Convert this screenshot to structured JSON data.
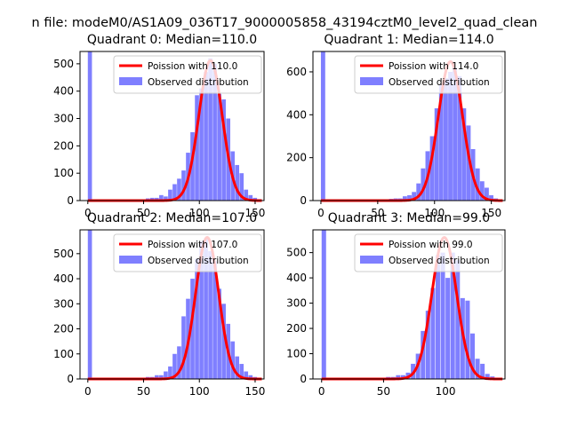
{
  "figure": {
    "suptitle": "n file: modeM0/AS1A09_036T17_9000005858_43194cztM0_level2_quad_clean"
  },
  "chart_data": [
    {
      "type": "bar",
      "title": "Quadrant 0: Median=110.0",
      "xlim": [
        -7,
        158
      ],
      "ylim": [
        0,
        545
      ],
      "xticks": [
        0,
        50,
        100,
        150
      ],
      "yticks": [
        0,
        100,
        200,
        300,
        400,
        500
      ],
      "poisson_mean": 110.0,
      "poisson_peak": 512,
      "legend": [
        "Poission with 110.0",
        "Observed distribution"
      ],
      "legend_position": "upper right",
      "bin_width": 3.7,
      "bins": [
        [
          0,
          545
        ],
        [
          52,
          8
        ],
        [
          56,
          10
        ],
        [
          60,
          10
        ],
        [
          64,
          20
        ],
        [
          68,
          15
        ],
        [
          72,
          40
        ],
        [
          76,
          60
        ],
        [
          80,
          80
        ],
        [
          84,
          110
        ],
        [
          88,
          175
        ],
        [
          92,
          250
        ],
        [
          96,
          385
        ],
        [
          100,
          410
        ],
        [
          104,
          470
        ],
        [
          108,
          520
        ],
        [
          112,
          500
        ],
        [
          116,
          390
        ],
        [
          120,
          370
        ],
        [
          124,
          300
        ],
        [
          128,
          180
        ],
        [
          132,
          130
        ],
        [
          136,
          100
        ],
        [
          140,
          40
        ],
        [
          144,
          20
        ],
        [
          148,
          10
        ],
        [
          152,
          5
        ]
      ]
    },
    {
      "type": "bar",
      "title": "Quadrant 1: Median=114.0",
      "xlim": [
        -7,
        162
      ],
      "ylim": [
        0,
        695
      ],
      "xticks": [
        0,
        50,
        100,
        150
      ],
      "yticks": [
        0,
        200,
        400,
        600
      ],
      "poisson_mean": 114.0,
      "poisson_peak": 648,
      "legend": [
        "Poission with 114.0",
        "Observed distribution"
      ],
      "legend_position": "upper right",
      "bin_width": 3.8,
      "bins": [
        [
          0,
          695
        ],
        [
          60,
          8
        ],
        [
          64,
          10
        ],
        [
          68,
          10
        ],
        [
          72,
          20
        ],
        [
          76,
          25
        ],
        [
          80,
          40
        ],
        [
          84,
          80
        ],
        [
          88,
          150
        ],
        [
          92,
          230
        ],
        [
          96,
          300
        ],
        [
          100,
          430
        ],
        [
          104,
          540
        ],
        [
          108,
          570
        ],
        [
          112,
          600
        ],
        [
          116,
          620
        ],
        [
          120,
          580
        ],
        [
          124,
          430
        ],
        [
          128,
          350
        ],
        [
          132,
          240
        ],
        [
          136,
          150
        ],
        [
          140,
          90
        ],
        [
          144,
          60
        ],
        [
          148,
          25
        ],
        [
          152,
          10
        ],
        [
          156,
          5
        ]
      ]
    },
    {
      "type": "bar",
      "title": "Quadrant 2: Median=107.0",
      "xlim": [
        -7,
        158
      ],
      "ylim": [
        0,
        595
      ],
      "xticks": [
        0,
        50,
        100,
        150
      ],
      "yticks": [
        0,
        100,
        200,
        300,
        400,
        500
      ],
      "poisson_mean": 107.0,
      "poisson_peak": 565,
      "legend": [
        "Poission with 107.0",
        "Observed distribution"
      ],
      "legend_position": "upper right",
      "bin_width": 3.7,
      "bins": [
        [
          0,
          595
        ],
        [
          52,
          8
        ],
        [
          56,
          8
        ],
        [
          60,
          15
        ],
        [
          64,
          15
        ],
        [
          68,
          30
        ],
        [
          72,
          50
        ],
        [
          76,
          100
        ],
        [
          80,
          130
        ],
        [
          84,
          250
        ],
        [
          88,
          320
        ],
        [
          92,
          400
        ],
        [
          96,
          480
        ],
        [
          100,
          550
        ],
        [
          104,
          560
        ],
        [
          108,
          510
        ],
        [
          112,
          470
        ],
        [
          116,
          360
        ],
        [
          120,
          300
        ],
        [
          124,
          220
        ],
        [
          128,
          150
        ],
        [
          132,
          90
        ],
        [
          136,
          60
        ],
        [
          140,
          30
        ],
        [
          144,
          15
        ],
        [
          148,
          8
        ]
      ]
    },
    {
      "type": "bar",
      "title": "Quadrant 3: Median=99.0",
      "xlim": [
        -7,
        148
      ],
      "ylim": [
        0,
        590
      ],
      "xticks": [
        0,
        50,
        100
      ],
      "yticks": [
        0,
        100,
        200,
        300,
        400,
        500
      ],
      "poisson_mean": 99.0,
      "poisson_peak": 560,
      "legend": [
        "Poission with 99.0",
        "Observed distribution"
      ],
      "legend_position": "upper right",
      "bin_width": 3.6,
      "bins": [
        [
          0,
          590
        ],
        [
          48,
          5
        ],
        [
          52,
          8
        ],
        [
          56,
          8
        ],
        [
          60,
          15
        ],
        [
          64,
          15
        ],
        [
          68,
          25
        ],
        [
          72,
          60
        ],
        [
          76,
          100
        ],
        [
          80,
          190
        ],
        [
          84,
          270
        ],
        [
          88,
          360
        ],
        [
          92,
          490
        ],
        [
          96,
          500
        ],
        [
          100,
          400
        ],
        [
          104,
          500
        ],
        [
          108,
          470
        ],
        [
          112,
          320
        ],
        [
          116,
          310
        ],
        [
          120,
          180
        ],
        [
          124,
          80
        ],
        [
          128,
          60
        ],
        [
          132,
          20
        ],
        [
          136,
          10
        ],
        [
          140,
          5
        ]
      ]
    }
  ]
}
